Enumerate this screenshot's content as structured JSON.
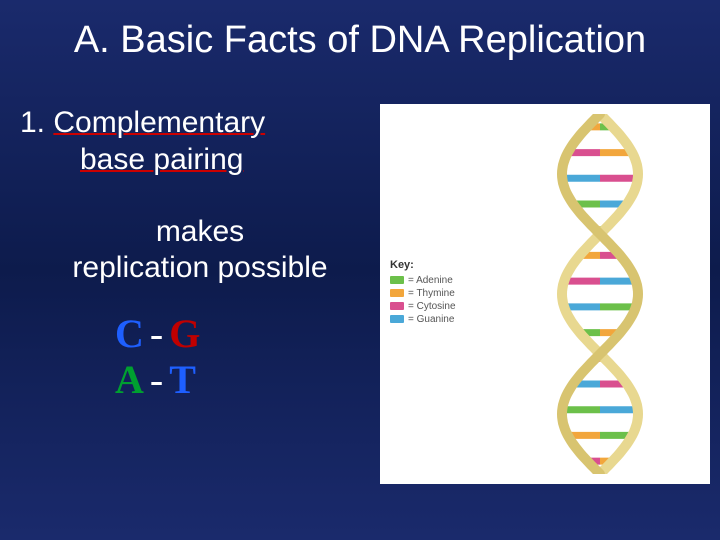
{
  "title": "A. Basic Facts of DNA Replication",
  "point1": {
    "num": "1.",
    "line1": "Complementary",
    "line2": "base pairing"
  },
  "makes": {
    "line1": "makes",
    "line2": "replication possible"
  },
  "pairs": {
    "c": "C",
    "g": "G",
    "a": "A",
    "t": "T",
    "dash": "-"
  },
  "key": {
    "title": "Key:",
    "items": [
      {
        "label": "= Adenine",
        "color": "#6cc04a"
      },
      {
        "label": "= Thymine",
        "color": "#f2a63c"
      },
      {
        "label": "= Cytosine",
        "color": "#d94f8f"
      },
      {
        "label": "= Guanine",
        "color": "#4aa8d8"
      }
    ]
  },
  "helix": {
    "backbone_color_1": "#e8d890",
    "backbone_color_2": "#d8c470",
    "rung_colors": [
      "#6cc04a",
      "#f2a63c",
      "#d94f8f",
      "#4aa8d8"
    ],
    "rung_count": 14
  }
}
